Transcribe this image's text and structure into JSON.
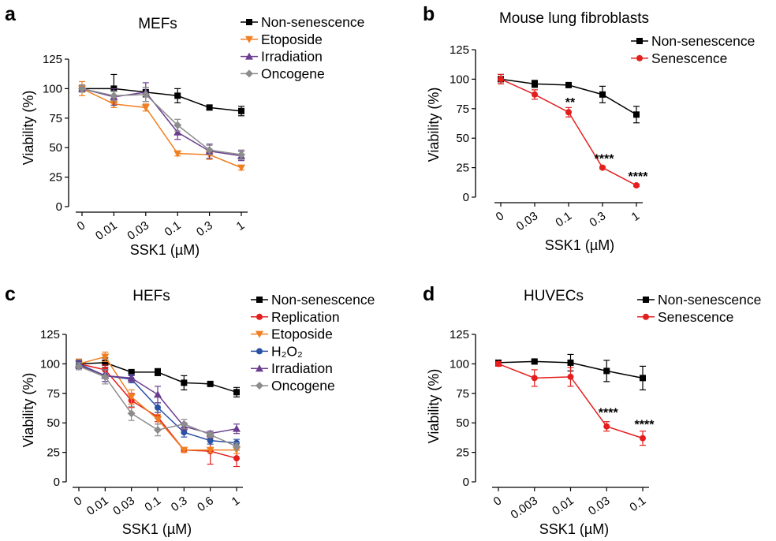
{
  "chart_data": [
    {
      "panel": "a",
      "type": "line",
      "title": "MEFs",
      "xlabel": "SSK1 (µM)",
      "ylabel": "Viability (%)",
      "categories": [
        "0",
        "0.01",
        "0.03",
        "0.1",
        "0.3",
        "1"
      ],
      "ylim": [
        0,
        125
      ],
      "yticks": [
        0,
        25,
        50,
        75,
        100,
        125
      ],
      "legend_position": "top-right",
      "series": [
        {
          "name": "Non-senescence",
          "color": "#000000",
          "marker": "square",
          "values": [
            100,
            100,
            97,
            94,
            84,
            81
          ],
          "errors": [
            3,
            12,
            4,
            6,
            2,
            4
          ]
        },
        {
          "name": "Etoposide",
          "color": "#f07f21",
          "marker": "triangle-down",
          "values": [
            100,
            87,
            84,
            45,
            44,
            33
          ],
          "errors": [
            6,
            3,
            3,
            2,
            4,
            2
          ]
        },
        {
          "name": "Irradiation",
          "color": "#6a3d8f",
          "marker": "triangle-up",
          "values": [
            100,
            93,
            97,
            63,
            47,
            43
          ],
          "errors": [
            3,
            7,
            8,
            6,
            6,
            4
          ]
        },
        {
          "name": "Oncogene",
          "color": "#8c8c8c",
          "marker": "diamond",
          "values": [
            100,
            94,
            95,
            69,
            48,
            44
          ],
          "errors": [
            3,
            4,
            6,
            5,
            4,
            4
          ]
        }
      ],
      "annotations": []
    },
    {
      "panel": "b",
      "type": "line",
      "title": "Mouse lung fibroblasts",
      "xlabel": "SSK1 (µM)",
      "ylabel": "Viability (%)",
      "categories": [
        "0",
        "0.03",
        "0.1",
        "0.3",
        "1"
      ],
      "ylim": [
        0,
        125
      ],
      "yticks": [
        0,
        25,
        50,
        75,
        100,
        125
      ],
      "legend_position": "top-right",
      "series": [
        {
          "name": "Non-senescence",
          "color": "#000000",
          "marker": "square",
          "values": [
            100,
            96,
            95,
            87,
            70
          ],
          "errors": [
            4,
            3,
            2,
            7,
            7
          ]
        },
        {
          "name": "Senescence",
          "color": "#e41e1e",
          "marker": "circle",
          "values": [
            100,
            87,
            72,
            25,
            10
          ],
          "errors": [
            4,
            4,
            4,
            1,
            1
          ]
        }
      ],
      "annotations": [
        {
          "category": "0.1",
          "value": 77,
          "text": "**"
        },
        {
          "category": "0.3",
          "value": 29,
          "text": "****"
        },
        {
          "category": "1",
          "value": 14,
          "text": "****"
        }
      ]
    },
    {
      "panel": "c",
      "type": "line",
      "title": "HEFs",
      "xlabel": "SSK1 (µM)",
      "ylabel": "Viability (%)",
      "categories": [
        "0",
        "0.01",
        "0.03",
        "0.1",
        "0.3",
        "0.6",
        "1"
      ],
      "ylim": [
        0,
        125
      ],
      "yticks": [
        0,
        25,
        50,
        75,
        100,
        125
      ],
      "legend_position": "top-right",
      "series": [
        {
          "name": "Non-senescence",
          "color": "#000000",
          "marker": "square",
          "values": [
            100,
            101,
            93,
            93,
            84,
            83,
            76
          ],
          "errors": [
            3,
            4,
            1,
            3,
            6,
            1,
            4
          ]
        },
        {
          "name": "Replication",
          "color": "#e41e1e",
          "marker": "circle",
          "values": [
            100,
            95,
            69,
            55,
            27,
            26,
            20
          ],
          "errors": [
            4,
            4,
            6,
            4,
            2,
            11,
            7
          ]
        },
        {
          "name": "Etoposide",
          "color": "#f07f21",
          "marker": "triangle-down",
          "values": [
            100,
            106,
            72,
            53,
            27,
            27,
            27
          ],
          "errors": [
            4,
            4,
            6,
            4,
            2,
            2,
            3
          ]
        },
        {
          "name": "H₂O₂",
          "color": "#2a51a3",
          "marker": "circle",
          "values": [
            100,
            90,
            87,
            63,
            42,
            35,
            33
          ],
          "errors": [
            3,
            5,
            3,
            4,
            4,
            3,
            3
          ]
        },
        {
          "name": "Irradiation",
          "color": "#6a3d8f",
          "marker": "triangle-up",
          "values": [
            99,
            90,
            88,
            74,
            47,
            41,
            45
          ],
          "errors": [
            3,
            5,
            3,
            7,
            3,
            2,
            4
          ]
        },
        {
          "name": "Oncogene",
          "color": "#8c8c8c",
          "marker": "diamond",
          "values": [
            98,
            89,
            58,
            44,
            49,
            40,
            30
          ],
          "errors": [
            3,
            6,
            6,
            5,
            4,
            2,
            3
          ]
        }
      ],
      "annotations": []
    },
    {
      "panel": "d",
      "type": "line",
      "title": "HUVECs",
      "xlabel": "SSK1 (µM)",
      "ylabel": "Viability (%)",
      "categories": [
        "0",
        "0.003",
        "0.01",
        "0.03",
        "0.1"
      ],
      "ylim": [
        0,
        125
      ],
      "yticks": [
        0,
        25,
        50,
        75,
        100,
        125
      ],
      "legend_position": "top-right",
      "series": [
        {
          "name": "Non-senescence",
          "color": "#000000",
          "marker": "square",
          "values": [
            101,
            102,
            101,
            94,
            88
          ],
          "errors": [
            2,
            1,
            7,
            9,
            10
          ]
        },
        {
          "name": "Senescence",
          "color": "#e41e1e",
          "marker": "circle",
          "values": [
            100,
            88,
            89,
            47,
            37
          ],
          "errors": [
            2,
            7,
            8,
            4,
            6
          ]
        }
      ],
      "annotations": [
        {
          "category": "0.03",
          "value": 55,
          "text": "****"
        },
        {
          "category": "0.1",
          "value": 45,
          "text": "****"
        }
      ]
    }
  ]
}
